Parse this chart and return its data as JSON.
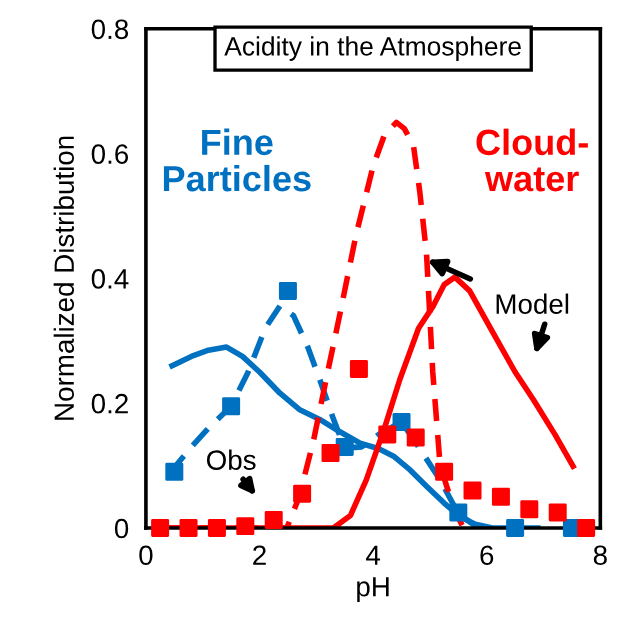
{
  "chart_data": {
    "type": "line",
    "title": "Acidity in the Atmosphere",
    "xlabel": "pH",
    "ylabel": "Normalized Distribution",
    "xlim": [
      0,
      8
    ],
    "ylim": [
      0,
      0.8
    ],
    "xticks": [
      0,
      2,
      4,
      6,
      8
    ],
    "yticks": [
      0,
      0.2,
      0.4,
      0.6,
      0.8
    ],
    "grid": false,
    "legend": false,
    "series": [
      {
        "type": "scatter",
        "marker": "square",
        "color": "#0070c0",
        "x": [
          0.5,
          1.5,
          2.5,
          3.5,
          4.5,
          5.5,
          6.5,
          7.5
        ],
        "values": [
          0.09,
          0.195,
          0.38,
          0.13,
          0.17,
          0.025,
          0,
          0
        ]
      },
      {
        "line_style": "dashed",
        "color": "#0070c0",
        "x": [
          0.42,
          0.8,
          1.1,
          1.5,
          1.8,
          2.1,
          2.36,
          2.6,
          2.85,
          3.06,
          3.3,
          3.5,
          3.8,
          4.1,
          4.5,
          4.8,
          5.18,
          5.5,
          5.85
        ],
        "values": [
          0.088,
          0.13,
          0.16,
          0.195,
          0.25,
          0.32,
          0.356,
          0.34,
          0.29,
          0.238,
          0.175,
          0.128,
          0.13,
          0.15,
          0.17,
          0.13,
          0.077,
          0.023,
          0
        ]
      },
      {
        "line_style": "solid",
        "color": "#0070c0",
        "x": [
          0.46,
          0.8,
          1.1,
          1.42,
          1.7,
          2.0,
          2.36,
          2.7,
          3.06,
          3.4,
          3.77,
          4.1,
          4.36,
          4.65,
          4.94,
          5.25,
          5.53,
          5.8,
          6.1,
          6.9
        ],
        "values": [
          0.26,
          0.275,
          0.285,
          0.29,
          0.275,
          0.25,
          0.216,
          0.19,
          0.174,
          0.155,
          0.136,
          0.127,
          0.115,
          0.093,
          0.067,
          0.04,
          0.018,
          0.006,
          0,
          0
        ]
      },
      {
        "type": "scatter",
        "marker": "square",
        "color": "#ff0000",
        "x": [
          0.25,
          0.75,
          1.25,
          1.75,
          2.25,
          2.75,
          3.25,
          3.75,
          4.25,
          4.75,
          5.25,
          5.75,
          6.25,
          6.75,
          7.25,
          7.75
        ],
        "values": [
          0,
          0,
          0,
          0.003,
          0.013,
          0.055,
          0.12,
          0.255,
          0.15,
          0.145,
          0.09,
          0.06,
          0.05,
          0.03,
          0.025,
          0
        ]
      },
      {
        "line_style": "dashed",
        "color": "#ff0000",
        "x": [
          0.3,
          2.48,
          2.7,
          2.95,
          3.2,
          3.42,
          3.7,
          4.0,
          4.2,
          4.41,
          4.55,
          4.71,
          4.82,
          4.94,
          5.05,
          5.18,
          5.41,
          5.59
        ],
        "values": [
          0,
          0,
          0.05,
          0.14,
          0.25,
          0.345,
          0.47,
          0.58,
          0.63,
          0.65,
          0.64,
          0.613,
          0.54,
          0.44,
          0.25,
          0.1,
          0.034,
          0
        ]
      },
      {
        "line_style": "solid",
        "color": "#ff0000",
        "x": [
          0.3,
          3.3,
          3.6,
          3.88,
          4.2,
          4.47,
          4.8,
          5.06,
          5.25,
          5.44,
          5.7,
          6.11,
          6.5,
          6.82,
          7.2,
          7.52
        ],
        "values": [
          0,
          0,
          0.02,
          0.077,
          0.16,
          0.238,
          0.32,
          0.356,
          0.39,
          0.402,
          0.38,
          0.313,
          0.25,
          0.206,
          0.15,
          0.099
        ]
      }
    ],
    "annotations": [
      "Fine\nParticles",
      "Cloud-\nwater",
      {
        "text": "Model",
        "x": 4.95,
        "y": 0.43
      },
      "Obs"
    ]
  }
}
